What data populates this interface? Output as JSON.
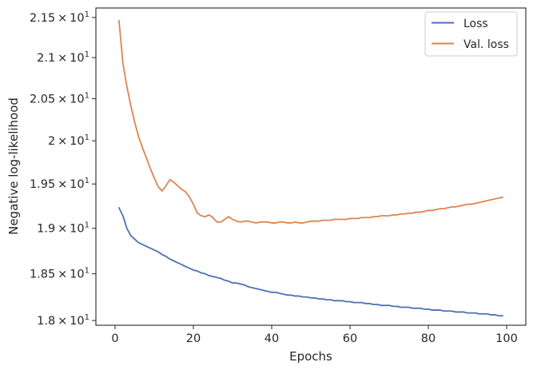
{
  "chart_data": {
    "type": "line",
    "title": "",
    "xlabel": "Epochs",
    "ylabel": "Negative log-likelihood",
    "xlim": [
      -4.9,
      104.9
    ],
    "ylim": [
      17.95,
      21.62
    ],
    "y_scale": "log",
    "grid": false,
    "legend_position": "top-right",
    "x_ticks": [
      0,
      20,
      40,
      60,
      80,
      100
    ],
    "x_tick_labels": [
      "0",
      "20",
      "40",
      "60",
      "80",
      "100"
    ],
    "y_ticks": [
      18.0,
      18.5,
      19.0,
      19.5,
      20.0,
      20.5,
      21.0,
      21.5
    ],
    "y_tick_labels": [
      {
        "base": "1.8",
        "exp": "1"
      },
      {
        "base": "1.85",
        "exp": "1"
      },
      {
        "base": "1.9",
        "exp": "1"
      },
      {
        "base": "1.95",
        "exp": "1"
      },
      {
        "base": "2",
        "exp": "1"
      },
      {
        "base": "2.05",
        "exp": "1"
      },
      {
        "base": "2.1",
        "exp": "1"
      },
      {
        "base": "2.15",
        "exp": "1"
      }
    ],
    "x": [
      1,
      2,
      3,
      4,
      5,
      6,
      7,
      8,
      9,
      10,
      11,
      12,
      13,
      14,
      15,
      16,
      17,
      18,
      19,
      20,
      21,
      22,
      23,
      24,
      25,
      26,
      27,
      28,
      29,
      30,
      31,
      32,
      33,
      34,
      35,
      36,
      37,
      38,
      39,
      40,
      41,
      42,
      43,
      44,
      45,
      46,
      47,
      48,
      49,
      50,
      51,
      52,
      53,
      54,
      55,
      56,
      57,
      58,
      59,
      60,
      61,
      62,
      63,
      64,
      65,
      66,
      67,
      68,
      69,
      70,
      71,
      72,
      73,
      74,
      75,
      76,
      77,
      78,
      79,
      80,
      81,
      82,
      83,
      84,
      85,
      86,
      87,
      88,
      89,
      90,
      91,
      92,
      93,
      94,
      95,
      96,
      97,
      98,
      99
    ],
    "series": [
      {
        "name": "Loss",
        "color": "#4c72b0",
        "values": [
          19.23,
          19.14,
          19.0,
          18.92,
          18.88,
          18.84,
          18.82,
          18.8,
          18.78,
          18.76,
          18.74,
          18.71,
          18.69,
          18.66,
          18.64,
          18.62,
          18.6,
          18.58,
          18.56,
          18.54,
          18.53,
          18.51,
          18.5,
          18.48,
          18.47,
          18.46,
          18.45,
          18.43,
          18.42,
          18.4,
          18.4,
          18.39,
          18.38,
          18.36,
          18.35,
          18.34,
          18.33,
          18.32,
          18.31,
          18.3,
          18.3,
          18.29,
          18.28,
          18.27,
          18.27,
          18.26,
          18.26,
          18.25,
          18.25,
          18.24,
          18.24,
          18.23,
          18.23,
          18.22,
          18.22,
          18.21,
          18.21,
          18.21,
          18.2,
          18.2,
          18.19,
          18.19,
          18.19,
          18.18,
          18.18,
          18.17,
          18.17,
          18.16,
          18.16,
          18.16,
          18.15,
          18.15,
          18.14,
          18.14,
          18.14,
          18.13,
          18.13,
          18.13,
          18.12,
          18.12,
          18.11,
          18.11,
          18.11,
          18.1,
          18.1,
          18.1,
          18.09,
          18.09,
          18.09,
          18.08,
          18.08,
          18.08,
          18.07,
          18.07,
          18.07,
          18.06,
          18.06,
          18.05,
          18.05
        ]
      },
      {
        "name": "Val. loss",
        "color": "#dd8452",
        "values": [
          21.46,
          20.93,
          20.65,
          20.42,
          20.22,
          20.05,
          19.92,
          19.8,
          19.68,
          19.57,
          19.47,
          19.42,
          19.48,
          19.55,
          19.52,
          19.48,
          19.44,
          19.41,
          19.35,
          19.27,
          19.17,
          19.14,
          19.13,
          19.15,
          19.12,
          19.07,
          19.07,
          19.1,
          19.13,
          19.1,
          19.08,
          19.07,
          19.08,
          19.08,
          19.07,
          19.06,
          19.07,
          19.07,
          19.07,
          19.06,
          19.06,
          19.07,
          19.07,
          19.06,
          19.06,
          19.07,
          19.06,
          19.06,
          19.07,
          19.08,
          19.08,
          19.08,
          19.09,
          19.09,
          19.09,
          19.1,
          19.1,
          19.1,
          19.1,
          19.11,
          19.11,
          19.11,
          19.12,
          19.12,
          19.12,
          19.13,
          19.13,
          19.14,
          19.14,
          19.14,
          19.15,
          19.15,
          19.16,
          19.16,
          19.17,
          19.17,
          19.18,
          19.18,
          19.19,
          19.2,
          19.2,
          19.21,
          19.22,
          19.22,
          19.23,
          19.24,
          19.24,
          19.25,
          19.26,
          19.27,
          19.27,
          19.28,
          19.29,
          19.3,
          19.31,
          19.32,
          19.33,
          19.34,
          19.35
        ]
      }
    ]
  }
}
